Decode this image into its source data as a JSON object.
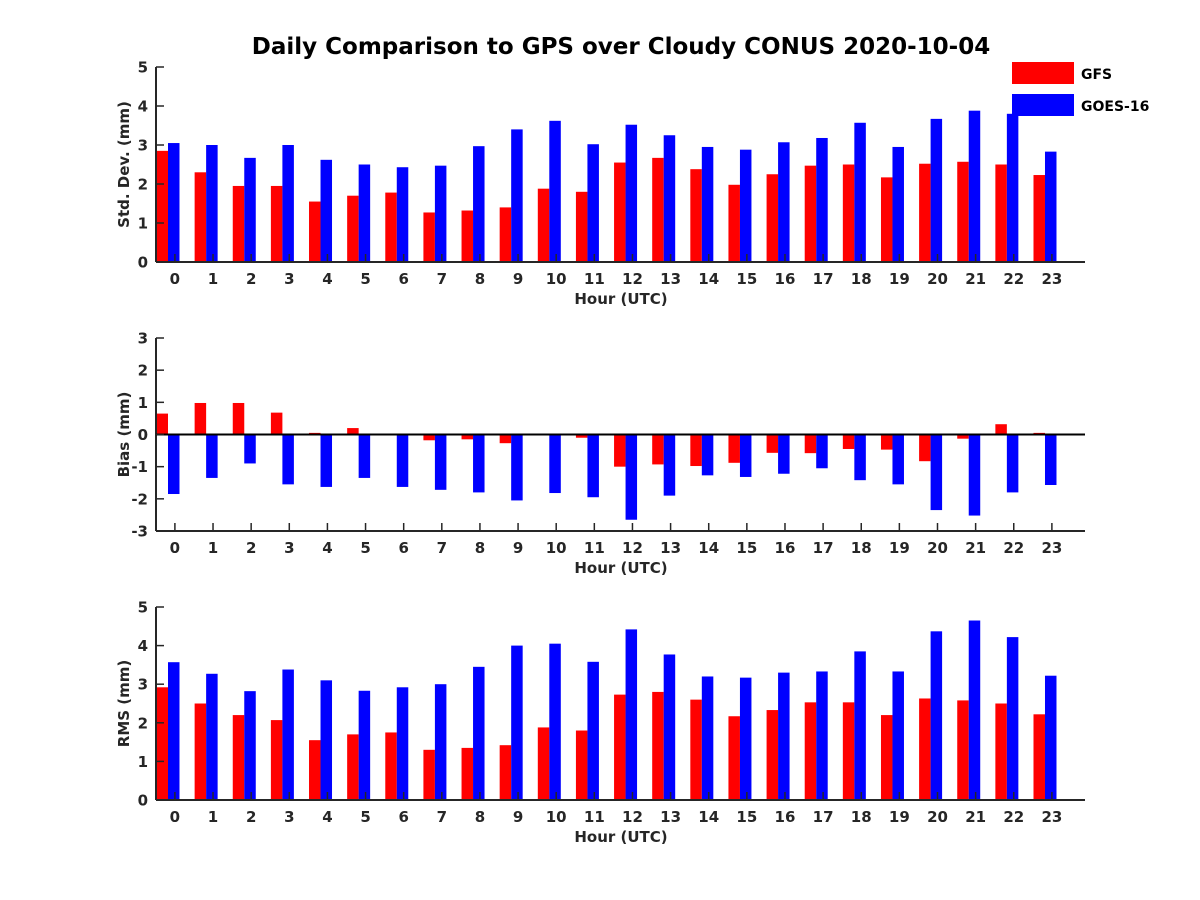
{
  "title": "Daily Comparison to GPS over Cloudy CONUS 2020-10-04",
  "legend": {
    "entries": [
      {
        "name": "GFS",
        "color": "#ff0000"
      },
      {
        "name": "GOES-16",
        "color": "#0000ff"
      }
    ],
    "placement": "top-right"
  },
  "chart_data": [
    {
      "type": "bar",
      "xlabel": "Hour (UTC)",
      "ylabel": "Std. Dev. (mm)",
      "ylim": [
        0,
        5
      ],
      "yticks": [
        0,
        1,
        2,
        3,
        4,
        5
      ],
      "categories": [
        "0",
        "1",
        "2",
        "3",
        "4",
        "5",
        "6",
        "7",
        "8",
        "9",
        "10",
        "11",
        "12",
        "13",
        "14",
        "15",
        "16",
        "17",
        "18",
        "19",
        "20",
        "21",
        "22",
        "23"
      ],
      "series": [
        {
          "name": "GFS",
          "color": "#ff0000",
          "values": [
            2.85,
            2.3,
            1.95,
            1.95,
            1.55,
            1.7,
            1.78,
            1.27,
            1.32,
            1.4,
            1.88,
            1.8,
            2.55,
            2.67,
            2.38,
            1.98,
            2.25,
            2.47,
            2.5,
            2.17,
            2.52,
            2.57,
            2.5,
            2.23
          ]
        },
        {
          "name": "GOES-16",
          "color": "#0000ff",
          "values": [
            3.05,
            3.0,
            2.67,
            3.0,
            2.62,
            2.5,
            2.43,
            2.47,
            2.97,
            3.4,
            3.62,
            3.02,
            3.52,
            3.25,
            2.95,
            2.88,
            3.07,
            3.18,
            3.57,
            2.95,
            3.67,
            3.88,
            3.8,
            2.83
          ]
        }
      ]
    },
    {
      "type": "bar",
      "xlabel": "Hour (UTC)",
      "ylabel": "Bias (mm)",
      "ylim": [
        -3,
        3
      ],
      "yticks": [
        -3,
        -2,
        -1,
        0,
        1,
        2,
        3
      ],
      "categories": [
        "0",
        "1",
        "2",
        "3",
        "4",
        "5",
        "6",
        "7",
        "8",
        "9",
        "10",
        "11",
        "12",
        "13",
        "14",
        "15",
        "16",
        "17",
        "18",
        "19",
        "20",
        "21",
        "22",
        "23"
      ],
      "series": [
        {
          "name": "GFS",
          "color": "#ff0000",
          "values": [
            0.65,
            0.98,
            0.98,
            0.68,
            0.05,
            0.2,
            0.0,
            -0.18,
            -0.15,
            -0.27,
            0.0,
            -0.1,
            -1.0,
            -0.93,
            -0.98,
            -0.88,
            -0.57,
            -0.58,
            -0.45,
            -0.47,
            -0.83,
            -0.13,
            0.32,
            0.05
          ]
        },
        {
          "name": "GOES-16",
          "color": "#0000ff",
          "values": [
            -1.85,
            -1.35,
            -0.9,
            -1.55,
            -1.63,
            -1.35,
            -1.63,
            -1.72,
            -1.8,
            -2.05,
            -1.82,
            -1.95,
            -2.65,
            -1.9,
            -1.27,
            -1.32,
            -1.22,
            -1.05,
            -1.42,
            -1.55,
            -2.35,
            -2.52,
            -1.8,
            -1.57
          ]
        }
      ]
    },
    {
      "type": "bar",
      "xlabel": "Hour (UTC)",
      "ylabel": "RMS (mm)",
      "ylim": [
        0,
        5
      ],
      "yticks": [
        0,
        1,
        2,
        3,
        4,
        5
      ],
      "categories": [
        "0",
        "1",
        "2",
        "3",
        "4",
        "5",
        "6",
        "7",
        "8",
        "9",
        "10",
        "11",
        "12",
        "13",
        "14",
        "15",
        "16",
        "17",
        "18",
        "19",
        "20",
        "21",
        "22",
        "23"
      ],
      "series": [
        {
          "name": "GFS",
          "color": "#ff0000",
          "values": [
            2.92,
            2.5,
            2.2,
            2.07,
            1.55,
            1.7,
            1.75,
            1.3,
            1.35,
            1.42,
            1.88,
            1.8,
            2.73,
            2.8,
            2.6,
            2.17,
            2.33,
            2.53,
            2.53,
            2.2,
            2.63,
            2.58,
            2.5,
            2.22
          ]
        },
        {
          "name": "GOES-16",
          "color": "#0000ff",
          "values": [
            3.57,
            3.27,
            2.82,
            3.38,
            3.1,
            2.83,
            2.92,
            3.0,
            3.45,
            4.0,
            4.05,
            3.58,
            4.42,
            3.77,
            3.2,
            3.17,
            3.3,
            3.33,
            3.85,
            3.33,
            4.37,
            4.65,
            4.22,
            3.22
          ]
        }
      ]
    }
  ]
}
